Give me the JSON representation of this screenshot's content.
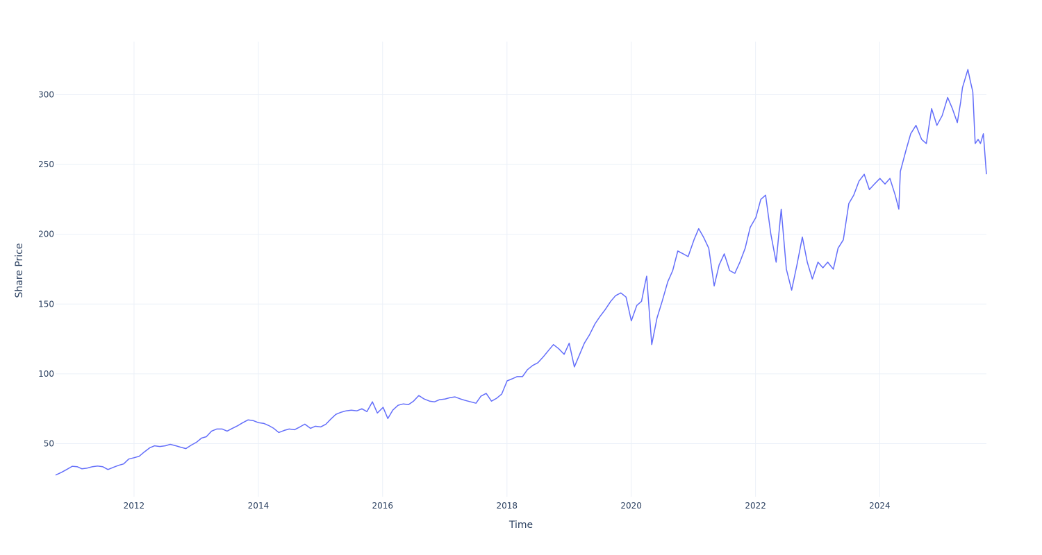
{
  "chart_data": {
    "type": "line",
    "title": "",
    "xlabel": "Time",
    "ylabel": "Share Price",
    "xlim": [
      "2010-09-27",
      "2025-09-19"
    ],
    "ylim": [
      12,
      338
    ],
    "grid": true,
    "legend": "none",
    "x_ticks": [
      "2012",
      "2014",
      "2016",
      "2018",
      "2020",
      "2022",
      "2024"
    ],
    "y_ticks": [
      "50",
      "100",
      "150",
      "200",
      "250",
      "300"
    ],
    "series": [
      {
        "color": "#636efa",
        "x": [
          "2010-09-27",
          "2010-11-01",
          "2010-12-01",
          "2011-01-03",
          "2011-02-01",
          "2011-03-01",
          "2011-04-01",
          "2011-05-02",
          "2011-06-01",
          "2011-07-01",
          "2011-08-01",
          "2011-09-01",
          "2011-10-03",
          "2011-11-01",
          "2011-12-01",
          "2012-01-03",
          "2012-02-01",
          "2012-03-01",
          "2012-04-02",
          "2012-05-01",
          "2012-06-01",
          "2012-07-02",
          "2012-08-01",
          "2012-09-04",
          "2012-10-01",
          "2012-11-01",
          "2012-12-03",
          "2013-01-02",
          "2013-02-01",
          "2013-03-01",
          "2013-04-01",
          "2013-05-01",
          "2013-06-03",
          "2013-07-01",
          "2013-08-01",
          "2013-09-03",
          "2013-10-01",
          "2013-11-01",
          "2013-12-02",
          "2014-01-02",
          "2014-02-03",
          "2014-03-03",
          "2014-04-01",
          "2014-05-01",
          "2014-06-02",
          "2014-07-01",
          "2014-08-01",
          "2014-09-02",
          "2014-10-01",
          "2014-11-03",
          "2014-12-01",
          "2015-01-02",
          "2015-02-02",
          "2015-03-02",
          "2015-04-01",
          "2015-05-01",
          "2015-06-01",
          "2015-07-01",
          "2015-08-03",
          "2015-09-01",
          "2015-10-01",
          "2015-11-02",
          "2015-12-01",
          "2016-01-04",
          "2016-02-01",
          "2016-03-01",
          "2016-04-01",
          "2016-05-02",
          "2016-06-01",
          "2016-07-01",
          "2016-08-01",
          "2016-09-01",
          "2016-10-03",
          "2016-11-01",
          "2016-12-01",
          "2017-01-03",
          "2017-02-01",
          "2017-03-01",
          "2017-04-03",
          "2017-05-01",
          "2017-06-01",
          "2017-07-03",
          "2017-08-01",
          "2017-09-01",
          "2017-10-02",
          "2017-11-01",
          "2017-12-01",
          "2018-01-02",
          "2018-02-01",
          "2018-03-01",
          "2018-04-02",
          "2018-05-01",
          "2018-06-01",
          "2018-07-02",
          "2018-08-01",
          "2018-09-04",
          "2018-10-01",
          "2018-11-01",
          "2018-12-03",
          "2019-01-02",
          "2019-02-01",
          "2019-03-01",
          "2019-04-01",
          "2019-05-01",
          "2019-06-03",
          "2019-07-01",
          "2019-08-01",
          "2019-09-03",
          "2019-10-01",
          "2019-11-01",
          "2019-12-02",
          "2020-01-02",
          "2020-02-03",
          "2020-03-02",
          "2020-03-23",
          "2020-04-01",
          "2020-05-01",
          "2020-06-01",
          "2020-07-01",
          "2020-08-03",
          "2020-09-01",
          "2020-10-01",
          "2020-11-02",
          "2020-12-01",
          "2021-01-04",
          "2021-02-01",
          "2021-03-01",
          "2021-04-01",
          "2021-05-03",
          "2021-06-01",
          "2021-07-01",
          "2021-08-02",
          "2021-09-01",
          "2021-10-01",
          "2021-11-01",
          "2021-12-01",
          "2022-01-03",
          "2022-02-01",
          "2022-03-01",
          "2022-04-01",
          "2022-05-02",
          "2022-06-01",
          "2022-07-01",
          "2022-08-01",
          "2022-09-01",
          "2022-10-03",
          "2022-11-01",
          "2022-12-01",
          "2023-01-03",
          "2023-02-01",
          "2023-03-01",
          "2023-04-03",
          "2023-05-01",
          "2023-06-01",
          "2023-07-03",
          "2023-08-01",
          "2023-09-01",
          "2023-10-02",
          "2023-11-01",
          "2023-12-01",
          "2024-01-02",
          "2024-02-01",
          "2024-03-01",
          "2024-04-01",
          "2024-04-22",
          "2024-05-01",
          "2024-06-03",
          "2024-07-01",
          "2024-08-01",
          "2024-09-03",
          "2024-10-01",
          "2024-11-01",
          "2024-12-02",
          "2025-01-02",
          "2025-02-03",
          "2025-03-03",
          "2025-04-01",
          "2025-04-21",
          "2025-05-01",
          "2025-06-02",
          "2025-06-16",
          "2025-07-01",
          "2025-07-15",
          "2025-08-01",
          "2025-08-15",
          "2025-09-01",
          "2025-09-19"
        ],
        "y": [
          27.5,
          29.5,
          31.5,
          33.8,
          33.5,
          32.0,
          32.5,
          33.5,
          34.0,
          33.5,
          31.5,
          33.0,
          34.5,
          35.5,
          39.0,
          40.0,
          41.0,
          44.0,
          47.0,
          48.5,
          48.0,
          48.5,
          49.5,
          48.5,
          47.5,
          46.5,
          49.0,
          51.0,
          54.0,
          55.0,
          59.0,
          60.5,
          60.5,
          59.0,
          61.0,
          63.0,
          65.0,
          67.0,
          66.5,
          65.0,
          64.5,
          63.0,
          61.0,
          58.0,
          59.5,
          60.5,
          60.0,
          62.0,
          64.0,
          61.0,
          62.5,
          62.0,
          64.0,
          67.5,
          71.0,
          72.5,
          73.5,
          74.0,
          73.5,
          75.0,
          73.0,
          80.0,
          72.0,
          76.0,
          68.0,
          74.0,
          77.5,
          78.5,
          78.0,
          80.5,
          84.5,
          82.0,
          80.5,
          80.0,
          81.5,
          82.0,
          83.0,
          83.5,
          82.0,
          81.0,
          80.0,
          79.0,
          84.0,
          86.0,
          80.5,
          82.5,
          85.5,
          95.0,
          96.5,
          98.0,
          98.0,
          103.0,
          106.0,
          108.0,
          112.0,
          117.0,
          121.0,
          118.0,
          114.0,
          122.0,
          105.0,
          113.0,
          122.0,
          128.0,
          136.0,
          141.0,
          146.0,
          152.0,
          156.0,
          158.0,
          155.0,
          138.0,
          149.0,
          152.0,
          165.0,
          170.0,
          121.0,
          140.0,
          152.0,
          166.0,
          174.0,
          188.0,
          186.0,
          184.0,
          196.0,
          204.0,
          198.0,
          190.0,
          163.0,
          178.0,
          186.0,
          174.0,
          172.0,
          180.0,
          190.0,
          205.0,
          212.0,
          225.0,
          228.0,
          200.0,
          180.0,
          218.0,
          175.0,
          160.0,
          178.0,
          198.0,
          180.0,
          168.0,
          180.0,
          176.0,
          180.0,
          175.0,
          190.0,
          196.0,
          222.0,
          228.0,
          238.0,
          243.0,
          232.0,
          236.0,
          240.0,
          236.0,
          240.0,
          228.0,
          218.0,
          245.0,
          260.0,
          272.0,
          278.0,
          268.0,
          265.0,
          290.0,
          278.0,
          285.0,
          298.0,
          290.0,
          280.0,
          295.0,
          305.0,
          318.0,
          310.0,
          302.0,
          265.0,
          268.0,
          265.0,
          272.0,
          243.0
        ]
      }
    ]
  }
}
